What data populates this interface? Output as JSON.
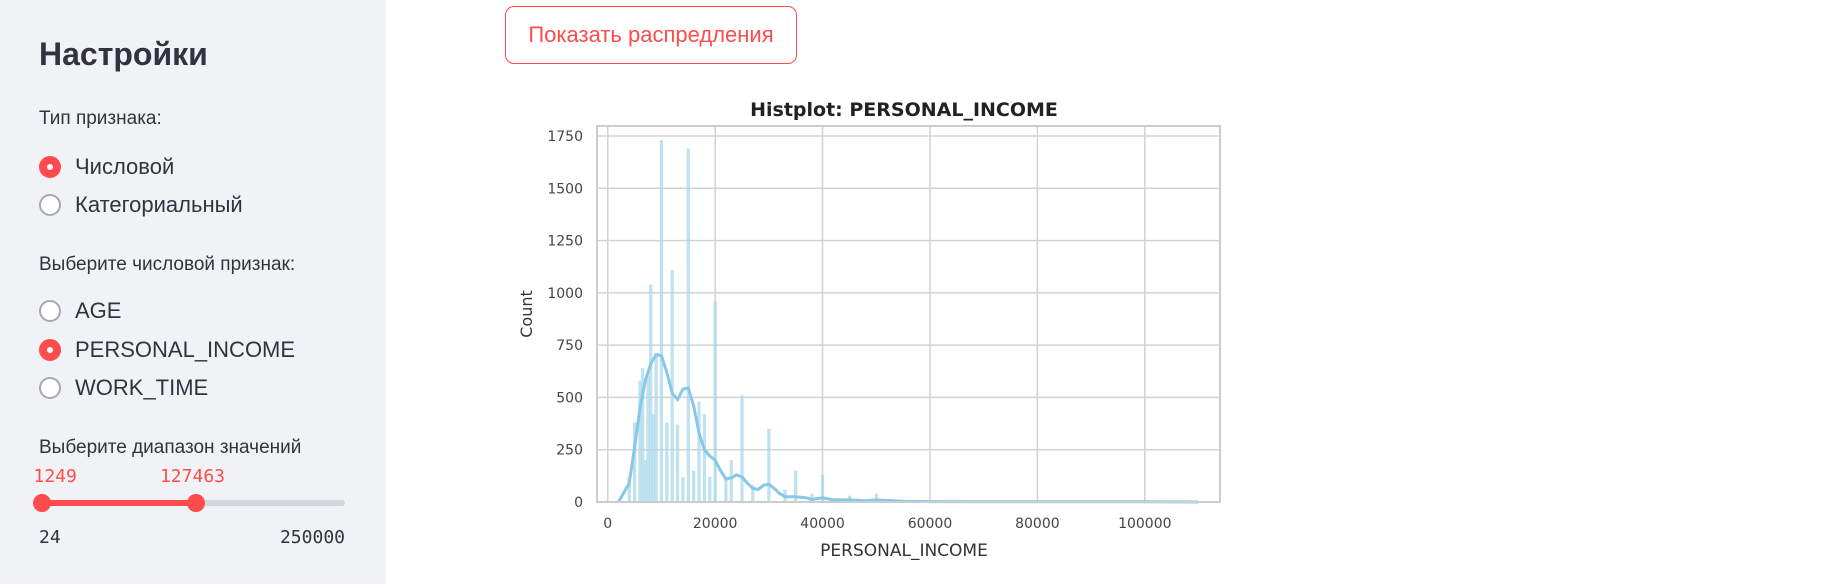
{
  "sidebar": {
    "title": "Настройки",
    "feature_type_label": "Тип признака:",
    "feature_types": [
      {
        "label": "Числовой",
        "selected": true
      },
      {
        "label": "Категориальный",
        "selected": false
      }
    ],
    "numeric_feature_label": "Выберите числовой признак:",
    "numeric_features": [
      {
        "label": "AGE",
        "selected": false
      },
      {
        "label": "PERSONAL_INCOME",
        "selected": true
      },
      {
        "label": "WORK_TIME",
        "selected": false
      }
    ],
    "range_label": "Выберите диапазон значений",
    "range": {
      "min": 24,
      "max": 250000,
      "low": 1249,
      "high": 127463,
      "min_label": "24",
      "max_label": "250000",
      "low_label": "1249",
      "high_label": "127463"
    }
  },
  "main": {
    "show_button_label": "Показать распредления"
  },
  "colors": {
    "accent": "#ff4b4b",
    "bars": "#a8d8ea",
    "kde": "#87c8e8"
  },
  "chart_data": {
    "type": "bar",
    "title": "Histplot: PERSONAL_INCOME",
    "xlabel": "PERSONAL_INCOME",
    "ylabel": "Count",
    "xlim": [
      -2000,
      114000
    ],
    "ylim": [
      0,
      1750
    ],
    "xticks": [
      0,
      20000,
      40000,
      60000,
      80000,
      100000
    ],
    "yticks": [
      0,
      250,
      500,
      750,
      1000,
      1250,
      1500,
      1750
    ],
    "grid": true,
    "bins": [
      {
        "x": 4000,
        "count": 120
      },
      {
        "x": 5000,
        "count": 380
      },
      {
        "x": 6000,
        "count": 580
      },
      {
        "x": 6500,
        "count": 640
      },
      {
        "x": 7000,
        "count": 200
      },
      {
        "x": 7500,
        "count": 600
      },
      {
        "x": 8000,
        "count": 1040
      },
      {
        "x": 8500,
        "count": 420
      },
      {
        "x": 9000,
        "count": 700
      },
      {
        "x": 10000,
        "count": 1730
      },
      {
        "x": 11000,
        "count": 380
      },
      {
        "x": 12000,
        "count": 1110
      },
      {
        "x": 13000,
        "count": 370
      },
      {
        "x": 14000,
        "count": 120
      },
      {
        "x": 15000,
        "count": 1690
      },
      {
        "x": 16000,
        "count": 150
      },
      {
        "x": 17000,
        "count": 480
      },
      {
        "x": 18000,
        "count": 420
      },
      {
        "x": 19000,
        "count": 120
      },
      {
        "x": 20000,
        "count": 960
      },
      {
        "x": 22000,
        "count": 120
      },
      {
        "x": 23000,
        "count": 200
      },
      {
        "x": 25000,
        "count": 510
      },
      {
        "x": 27000,
        "count": 80
      },
      {
        "x": 30000,
        "count": 350
      },
      {
        "x": 33000,
        "count": 60
      },
      {
        "x": 35000,
        "count": 150
      },
      {
        "x": 38000,
        "count": 40
      },
      {
        "x": 40000,
        "count": 130
      },
      {
        "x": 45000,
        "count": 30
      },
      {
        "x": 50000,
        "count": 40
      },
      {
        "x": 55000,
        "count": 10
      },
      {
        "x": 60000,
        "count": 5
      },
      {
        "x": 70000,
        "count": 3
      },
      {
        "x": 80000,
        "count": 3
      },
      {
        "x": 90000,
        "count": 2
      },
      {
        "x": 100000,
        "count": 2
      },
      {
        "x": 110000,
        "count": 2
      }
    ],
    "kde": [
      [
        2000,
        0
      ],
      [
        4000,
        90
      ],
      [
        5000,
        260
      ],
      [
        6000,
        450
      ],
      [
        7000,
        580
      ],
      [
        8000,
        660
      ],
      [
        9000,
        705
      ],
      [
        10000,
        700
      ],
      [
        11000,
        620
      ],
      [
        12000,
        520
      ],
      [
        13000,
        490
      ],
      [
        14000,
        540
      ],
      [
        15000,
        545
      ],
      [
        16000,
        460
      ],
      [
        17000,
        330
      ],
      [
        18000,
        250
      ],
      [
        19000,
        220
      ],
      [
        20000,
        200
      ],
      [
        21000,
        150
      ],
      [
        22000,
        110
      ],
      [
        23000,
        115
      ],
      [
        24000,
        130
      ],
      [
        25000,
        120
      ],
      [
        26000,
        90
      ],
      [
        27000,
        65
      ],
      [
        28000,
        60
      ],
      [
        29000,
        80
      ],
      [
        30000,
        85
      ],
      [
        31000,
        65
      ],
      [
        32000,
        40
      ],
      [
        33000,
        25
      ],
      [
        35000,
        25
      ],
      [
        37000,
        20
      ],
      [
        38000,
        12
      ],
      [
        40000,
        20
      ],
      [
        42000,
        10
      ],
      [
        45000,
        10
      ],
      [
        48000,
        6
      ],
      [
        50000,
        10
      ],
      [
        55000,
        4
      ],
      [
        60000,
        2
      ],
      [
        70000,
        1
      ],
      [
        80000,
        1
      ],
      [
        90000,
        1
      ],
      [
        100000,
        1
      ],
      [
        110000,
        0
      ]
    ]
  }
}
